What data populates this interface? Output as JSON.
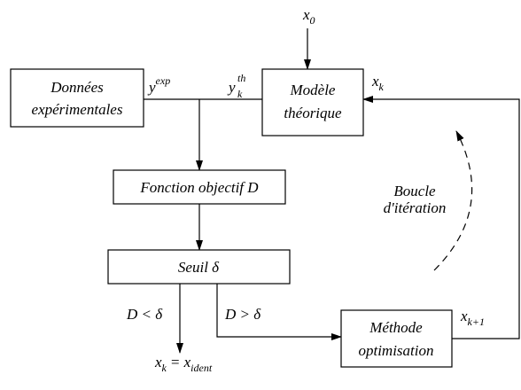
{
  "boxes": [
    {
      "lines": [
        "Données",
        "expérimentales"
      ]
    },
    {
      "lines": [
        "Modèle",
        "théorique"
      ]
    },
    {
      "lines": [
        "Fonction objectif D"
      ]
    },
    {
      "lines": [
        "Seuil δ"
      ]
    },
    {
      "lines": [
        "Méthode",
        "optimisation"
      ]
    }
  ],
  "labels": {
    "x0": [
      {
        "text": "x"
      },
      {
        "sub": "0"
      }
    ],
    "y_exp": [
      {
        "text": "y"
      },
      {
        "sup": "exp"
      }
    ],
    "y_th": [
      {
        "text": "y"
      },
      {
        "sub": "k"
      },
      {
        "sup": "th"
      }
    ],
    "x_k": [
      {
        "text": "x"
      },
      {
        "sub": "k"
      }
    ],
    "x_k1": [
      {
        "text": "x"
      },
      {
        "sub": "k+1"
      }
    ],
    "cond_lt": "D < δ",
    "cond_gt": "D > δ",
    "result": [
      {
        "text": "x"
      },
      {
        "sub": "k"
      },
      {
        "text": "= x"
      },
      {
        "sub": "ident"
      }
    ]
  },
  "loop": [
    "Boucle",
    "d'itération"
  ]
}
